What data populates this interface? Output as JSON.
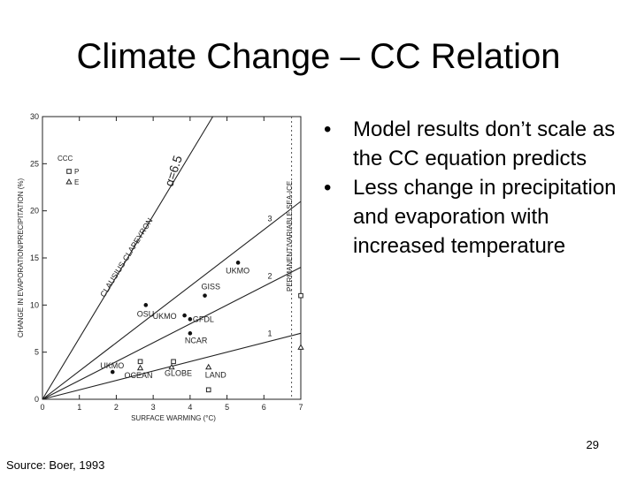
{
  "slide": {
    "title": "Climate Change – CC Relation",
    "bullets": [
      "Model results don’t scale as the CC equation predicts",
      "Less change in precipitation and evaporation with increased temperature"
    ],
    "page_number": "29",
    "source": "Source: Boer, 1993"
  },
  "chart_data": {
    "type": "scatter",
    "xlabel": "SURFACE WARMING (°C)",
    "ylabel": "CHANGE IN EVAPORATION/PRECIPITATION (%)",
    "xlim": [
      0,
      7
    ],
    "ylim": [
      0,
      30
    ],
    "xticks": [
      "0",
      "1",
      "2",
      "3",
      "4",
      "5",
      "6",
      "7"
    ],
    "yticks": [
      "0",
      "5",
      "10",
      "15",
      "20",
      "25",
      "30"
    ],
    "grid": false,
    "reference_lines": [
      {
        "label": "α=6.5",
        "slope": 6.5
      },
      {
        "label": "3",
        "slope": 3
      },
      {
        "label": "2",
        "slope": 2
      },
      {
        "label": "1",
        "slope": 1
      }
    ],
    "annotations": {
      "clausius_clapeyron": "CLAUSIUS-CLAPEYRON",
      "alpha": "α=6.5",
      "sea_ice": "PERMANENT/VARIABLE SEA-ICE"
    },
    "legend": {
      "placement": "top-left",
      "title": "CCC",
      "entries": [
        {
          "marker": "square",
          "label": "P"
        },
        {
          "marker": "triangle",
          "label": "E"
        }
      ]
    },
    "points": [
      {
        "x": 4.4,
        "y": 11.0,
        "marker": "dot",
        "label": "GISS"
      },
      {
        "x": 5.3,
        "y": 14.5,
        "marker": "dot",
        "label": "UKMO"
      },
      {
        "x": 4.0,
        "y": 8.5,
        "marker": "dot",
        "label": "GFDL"
      },
      {
        "x": 4.0,
        "y": 7.0,
        "marker": "dot",
        "label": "NCAR"
      },
      {
        "x": 3.85,
        "y": 8.9,
        "marker": "dot",
        "label": "UKMO"
      },
      {
        "x": 2.8,
        "y": 10.0,
        "marker": "dot",
        "label": "OSU"
      },
      {
        "x": 1.9,
        "y": 2.9,
        "marker": "dot",
        "label": "UKMO"
      },
      {
        "x": 2.65,
        "y": 4.0,
        "marker": "square",
        "label": ""
      },
      {
        "x": 2.65,
        "y": 3.3,
        "marker": "triangle",
        "label": "OCEAN"
      },
      {
        "x": 3.55,
        "y": 4.0,
        "marker": "square",
        "label": ""
      },
      {
        "x": 3.5,
        "y": 3.4,
        "marker": "triangle",
        "label": "GLOBE"
      },
      {
        "x": 4.5,
        "y": 3.4,
        "marker": "triangle",
        "label": "LAND"
      },
      {
        "x": 4.5,
        "y": 1.0,
        "marker": "square",
        "label": ""
      },
      {
        "x": 7.0,
        "y": 11.0,
        "marker": "square",
        "label": ""
      },
      {
        "x": 7.0,
        "y": 5.5,
        "marker": "triangle",
        "label": ""
      }
    ]
  }
}
